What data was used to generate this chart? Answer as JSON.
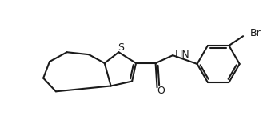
{
  "bg_color": "#ffffff",
  "line_color": "#1a1a1a",
  "line_width": 1.5,
  "text_color": "#1a1a1a",
  "atoms": {
    "S_label": "S",
    "N_label": "HN",
    "O_label": "O",
    "Br_label": "Br"
  },
  "font_size": 9.0
}
